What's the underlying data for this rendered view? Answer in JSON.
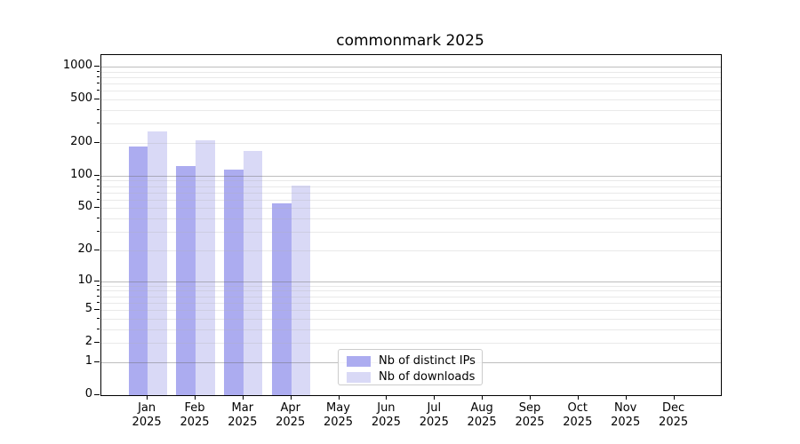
{
  "chart_data": {
    "type": "bar",
    "title": "commonmark 2025",
    "x_categories": [
      "Jan",
      "Feb",
      "Mar",
      "Apr",
      "May",
      "Jun",
      "Jul",
      "Aug",
      "Sep",
      "Oct",
      "Nov",
      "Dec"
    ],
    "x_year_label": "2025",
    "series": [
      {
        "name": "Nb of distinct IPs",
        "color": "#acacf0",
        "values": [
          185,
          123,
          113,
          55,
          null,
          null,
          null,
          null,
          null,
          null,
          null,
          null
        ]
      },
      {
        "name": "Nb of downloads",
        "color": "#d9d9f6",
        "values": [
          255,
          211,
          168,
          81,
          null,
          null,
          null,
          null,
          null,
          null,
          null,
          null
        ]
      }
    ],
    "yscale": "log1p",
    "ylim": [
      0,
      1276
    ],
    "yticks_labeled": [
      0,
      1,
      2,
      5,
      10,
      20,
      50,
      100,
      200,
      500,
      1000
    ],
    "y_major_gridlines": [
      1,
      10,
      100,
      1000
    ],
    "y_minor_gridlines": [
      2,
      3,
      4,
      5,
      6,
      7,
      8,
      9,
      20,
      30,
      40,
      50,
      60,
      70,
      80,
      90,
      200,
      300,
      400,
      500,
      600,
      700,
      800,
      900
    ],
    "grid": true,
    "legend_position": "lower center"
  },
  "colors": {
    "bar_distinct_ips": "#acacf0",
    "bar_downloads": "#d9d9f6",
    "spine": "#000000",
    "major_grid": "#bdbdbd",
    "minor_grid": "#e7e7e7",
    "legend_border": "#cccccc",
    "background": "#ffffff"
  }
}
